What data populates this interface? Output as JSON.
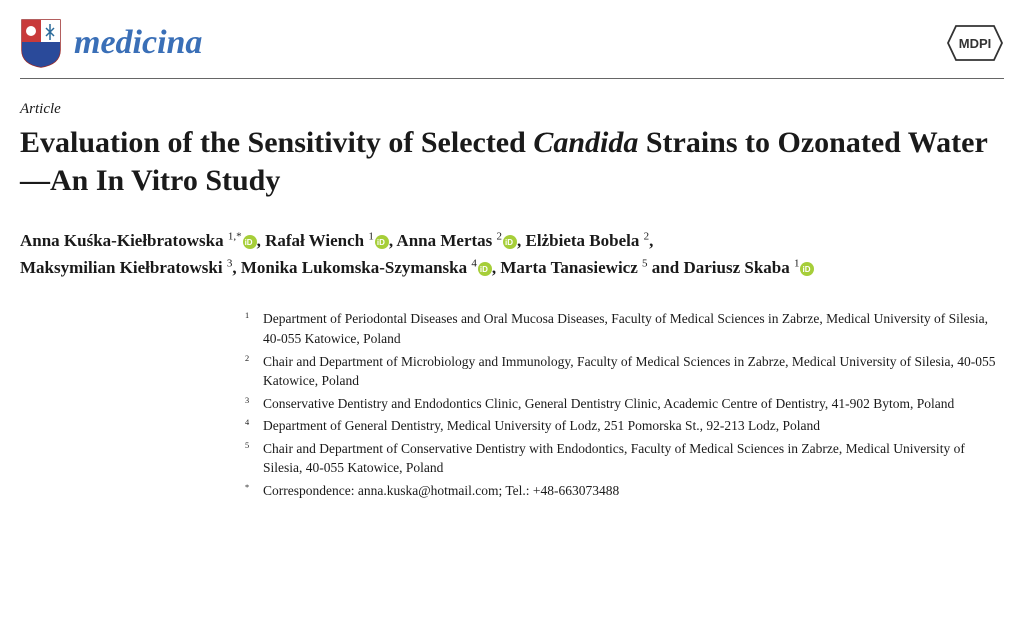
{
  "journal": {
    "name": "medicina",
    "name_color": "#3a6fb7",
    "publisher": "MDPI"
  },
  "article": {
    "type": "Article",
    "title_pre": "Evaluation of the Sensitivity of Selected ",
    "title_italic": "Candida",
    "title_post": " Strains to Ozonated Water—An In Vitro Study"
  },
  "authors": [
    {
      "name": "Anna Kuśka-Kiełbratowska",
      "sup": "1,",
      "extra": "*",
      "orcid": true
    },
    {
      "name": "Rafał Wiench",
      "sup": "1",
      "orcid": true
    },
    {
      "name": "Anna Mertas",
      "sup": "2",
      "orcid": true
    },
    {
      "name": "Elżbieta Bobela",
      "sup": "2",
      "orcid": false
    },
    {
      "name": "Maksymilian Kiełbratowski",
      "sup": "3",
      "orcid": false
    },
    {
      "name": "Monika Lukomska-Szymanska",
      "sup": "4",
      "orcid": true
    },
    {
      "name": "Marta Tanasiewicz",
      "sup": "5",
      "orcid": false
    },
    {
      "name": "Dariusz Skaba",
      "sup": "1",
      "orcid": true
    }
  ],
  "affiliations": [
    {
      "num": "1",
      "text": "Department of Periodontal Diseases and Oral Mucosa Diseases, Faculty of Medical Sciences in Zabrze, Medical University of Silesia, 40-055 Katowice, Poland"
    },
    {
      "num": "2",
      "text": "Chair and Department of Microbiology and Immunology, Faculty of Medical Sciences in Zabrze, Medical University of Silesia, 40-055 Katowice, Poland"
    },
    {
      "num": "3",
      "text": "Conservative Dentistry and Endodontics Clinic, General Dentistry Clinic, Academic Centre of Dentistry, 41-902 Bytom, Poland"
    },
    {
      "num": "4",
      "text": "Department of General Dentistry, Medical University of Lodz, 251 Pomorska St., 92-213 Lodz, Poland"
    },
    {
      "num": "5",
      "text": "Chair and Department of Conservative Dentistry with Endodontics, Faculty of Medical Sciences in Zabrze, Medical University of Silesia, 40-055 Katowice, Poland"
    }
  ],
  "correspondence": {
    "mark": "*",
    "text": "Correspondence: anna.kuska@hotmail.com; Tel.: +48-663073488"
  },
  "colors": {
    "text": "#1a1a1a",
    "background": "#ffffff",
    "orcid_green": "#a6ce39",
    "rule": "#666666"
  }
}
